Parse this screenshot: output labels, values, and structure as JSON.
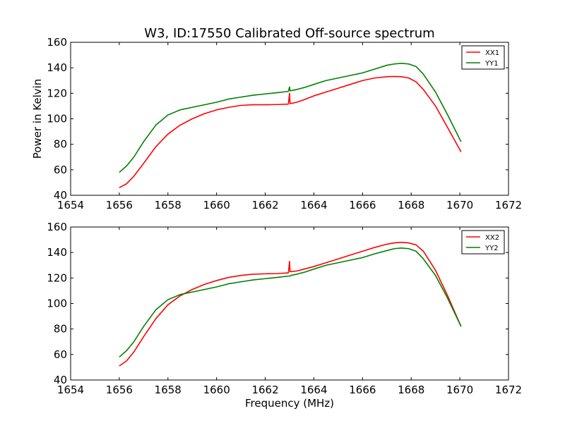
{
  "chart_data": [
    {
      "type": "line",
      "title": "W3, ID:17550 Calibrated Off-source spectrum",
      "xlabel": "",
      "ylabel": "Power in Kelvin",
      "xlim": [
        1654,
        1672
      ],
      "ylim": [
        40,
        160
      ],
      "xticks": [
        1654,
        1656,
        1658,
        1660,
        1662,
        1664,
        1666,
        1668,
        1670,
        1672
      ],
      "yticks": [
        40,
        60,
        80,
        100,
        120,
        140,
        160
      ],
      "grid": false,
      "legend": "top-right",
      "series": [
        {
          "name": "XX1",
          "color": "#ff0000",
          "x": [
            1656.0,
            1656.3,
            1656.6,
            1657.0,
            1657.5,
            1658.0,
            1658.5,
            1659.0,
            1659.5,
            1660.0,
            1660.5,
            1661.0,
            1661.5,
            1662.0,
            1662.5,
            1662.95,
            1663.0,
            1663.02,
            1663.05,
            1663.3,
            1663.6,
            1664.0,
            1664.5,
            1665.0,
            1665.5,
            1666.0,
            1666.5,
            1667.0,
            1667.3,
            1667.6,
            1667.9,
            1668.2,
            1668.5,
            1669.0,
            1669.5,
            1670.05
          ],
          "values": [
            46,
            49,
            55,
            65,
            78,
            88,
            95,
            100,
            104,
            107,
            109,
            110.5,
            111,
            111,
            111.2,
            111.5,
            120,
            112,
            112,
            113,
            115,
            118,
            121,
            124,
            127,
            130,
            132,
            133,
            133.2,
            133,
            132,
            129,
            123,
            110,
            93,
            74
          ]
        },
        {
          "name": "YY1",
          "color": "#008000",
          "x": [
            1656.0,
            1656.3,
            1656.6,
            1657.0,
            1657.5,
            1658.0,
            1658.5,
            1659.0,
            1659.5,
            1660.0,
            1660.5,
            1661.0,
            1661.5,
            1662.0,
            1662.5,
            1662.95,
            1663.0,
            1663.02,
            1663.05,
            1663.3,
            1663.6,
            1664.0,
            1664.5,
            1665.0,
            1665.5,
            1666.0,
            1666.5,
            1667.0,
            1667.3,
            1667.6,
            1667.9,
            1668.2,
            1668.5,
            1669.0,
            1669.5,
            1670.05
          ],
          "values": [
            58,
            63,
            70,
            82,
            95,
            103,
            107,
            109,
            111,
            113,
            115.5,
            117,
            118.5,
            119.5,
            120.5,
            121.5,
            125,
            122,
            122,
            123,
            124.5,
            127,
            130,
            132,
            134,
            136,
            139,
            142,
            143,
            143.5,
            143,
            141,
            135,
            121,
            103,
            82
          ]
        }
      ]
    },
    {
      "type": "line",
      "title": "",
      "xlabel": "Frequency (MHz)",
      "ylabel": "",
      "xlim": [
        1654,
        1672
      ],
      "ylim": [
        40,
        160
      ],
      "xticks": [
        1654,
        1656,
        1658,
        1660,
        1662,
        1664,
        1666,
        1668,
        1670,
        1672
      ],
      "yticks": [
        40,
        60,
        80,
        100,
        120,
        140,
        160
      ],
      "grid": false,
      "legend": "top-right",
      "series": [
        {
          "name": "XX2",
          "color": "#ff0000",
          "x": [
            1656.0,
            1656.3,
            1656.6,
            1657.0,
            1657.5,
            1658.0,
            1658.5,
            1659.0,
            1659.5,
            1660.0,
            1660.5,
            1661.0,
            1661.5,
            1662.0,
            1662.5,
            1662.95,
            1663.0,
            1663.02,
            1663.05,
            1663.3,
            1663.6,
            1664.0,
            1664.5,
            1665.0,
            1665.5,
            1666.0,
            1666.5,
            1667.0,
            1667.3,
            1667.6,
            1667.9,
            1668.2,
            1668.5,
            1669.0,
            1669.5,
            1670.05
          ],
          "values": [
            51,
            55,
            62,
            74,
            88,
            99,
            106,
            111,
            115,
            118,
            120.5,
            122,
            123,
            123.3,
            123.5,
            124,
            133,
            125,
            125,
            125.5,
            127,
            129,
            132,
            135,
            138,
            141,
            144,
            146.5,
            147.5,
            148,
            147.5,
            146,
            141,
            126,
            106,
            82
          ]
        },
        {
          "name": "YY2",
          "color": "#008000",
          "x": [
            1656.0,
            1656.3,
            1656.6,
            1657.0,
            1657.5,
            1658.0,
            1658.5,
            1659.0,
            1659.5,
            1660.0,
            1660.5,
            1661.0,
            1661.5,
            1662.0,
            1662.5,
            1662.95,
            1663.0,
            1663.02,
            1663.05,
            1663.3,
            1663.6,
            1664.0,
            1664.5,
            1665.0,
            1665.5,
            1666.0,
            1666.5,
            1667.0,
            1667.3,
            1667.6,
            1667.9,
            1668.2,
            1668.5,
            1669.0,
            1669.5,
            1670.05
          ],
          "values": [
            58,
            63,
            70,
            82,
            95,
            103,
            107,
            109,
            111,
            113,
            115.5,
            117,
            118.5,
            119.5,
            120.5,
            121.5,
            121.5,
            121.5,
            122,
            123,
            124.5,
            127,
            130,
            132,
            134,
            136,
            139,
            141.5,
            143,
            143.5,
            143,
            141,
            135,
            122,
            104,
            82
          ]
        }
      ]
    }
  ]
}
